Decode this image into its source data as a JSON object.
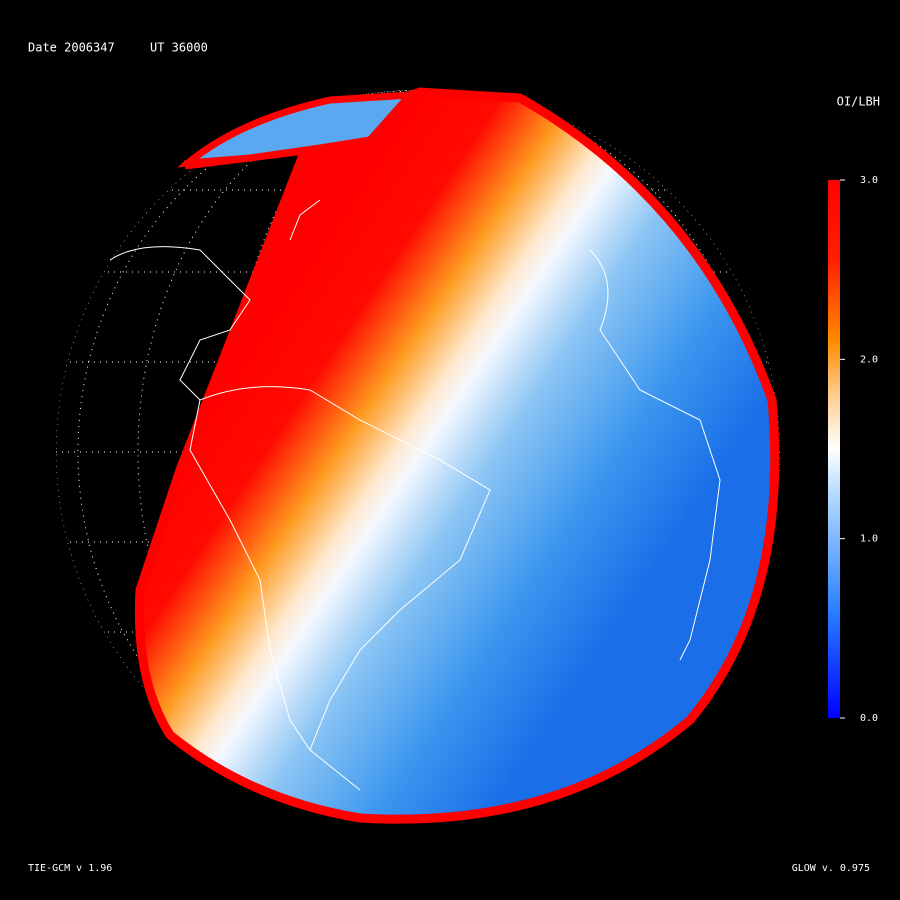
{
  "header": {
    "date": "Date 2006347",
    "ut": "UT 36000"
  },
  "colorbar": {
    "title": "OI/LBH",
    "range": [
      0,
      3
    ],
    "ticks": [
      {
        "value": 3,
        "label": "3.0"
      },
      {
        "value": 2,
        "label": "2.0"
      },
      {
        "value": 1,
        "label": "1.0"
      },
      {
        "value": 0,
        "label": "0.0"
      }
    ]
  },
  "footer": {
    "left": "TIE-GCM v 1.96",
    "right": "GLOW v. 0.975"
  }
}
